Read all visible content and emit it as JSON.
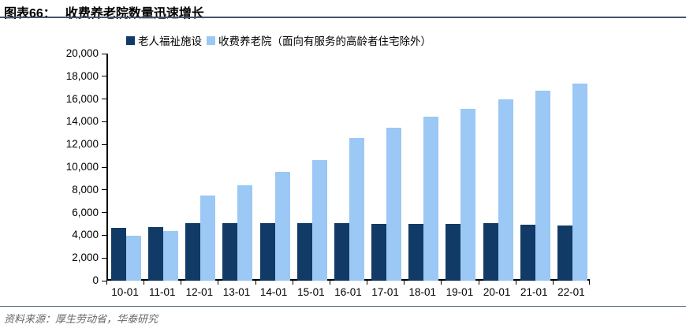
{
  "header": {
    "figure_label": "图表66：",
    "title": "收费养老院数量迅速增长"
  },
  "chart_data": {
    "type": "bar",
    "title": "收费养老院数量迅速增长",
    "categories": [
      "10-01",
      "11-01",
      "12-01",
      "13-01",
      "14-01",
      "15-01",
      "16-01",
      "17-01",
      "18-01",
      "19-01",
      "20-01",
      "21-01",
      "22-01"
    ],
    "series": [
      {
        "name": "老人福祉施设",
        "color": "#123A66",
        "values": [
          4650,
          4700,
          5100,
          5050,
          5100,
          5100,
          5050,
          5000,
          5000,
          5000,
          5050,
          4900,
          4850
        ]
      },
      {
        "name": "收费养老院（面向有服务的高龄者住宅除外）",
        "color": "#9BC8F4",
        "values": [
          3950,
          4350,
          7500,
          8400,
          9550,
          10650,
          12550,
          13500,
          14450,
          15150,
          15950,
          16750,
          17350
        ]
      }
    ],
    "ylim": [
      0,
      20000
    ],
    "ytick_step": 2000,
    "yticks": [
      "0",
      "2,000",
      "4,000",
      "6,000",
      "8,000",
      "10,000",
      "12,000",
      "14,000",
      "16,000",
      "18,000",
      "20,000"
    ],
    "grid": false,
    "legend_position": "top"
  },
  "footer": {
    "source": "资料来源：厚生劳动省，华泰研究"
  }
}
